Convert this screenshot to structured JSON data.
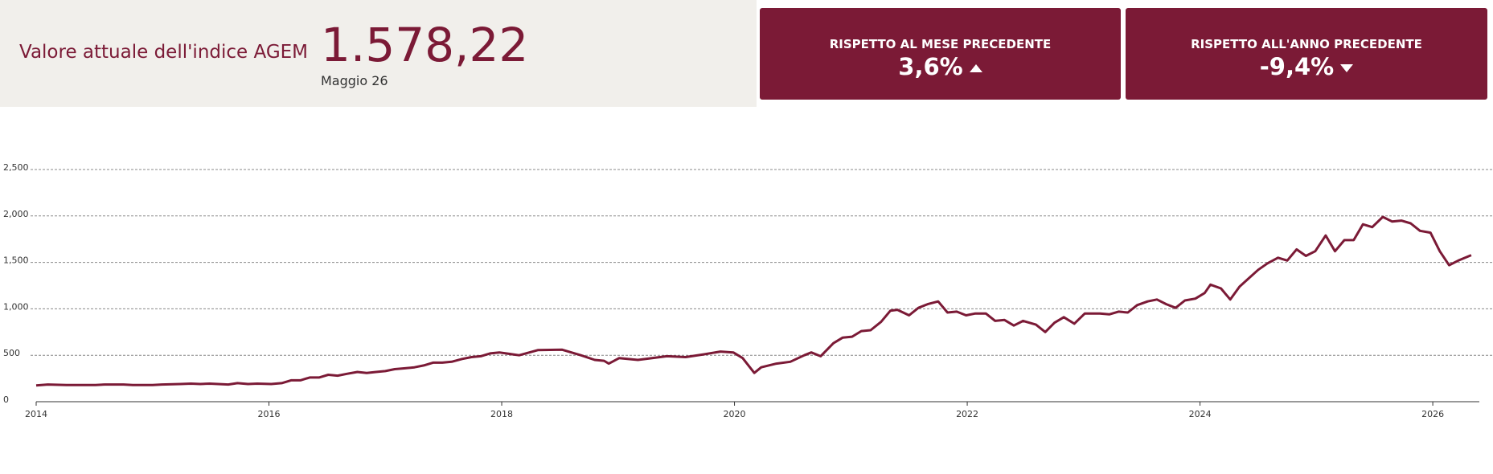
{
  "kpi": {
    "label": "Valore attuale dell'indice AGEM",
    "value": "1.578,22",
    "date": "Maggio 26"
  },
  "cards": [
    {
      "label": "RISPETTO AL MESE PRECEDENTE",
      "value": "3,6%"
    },
    {
      "label": "RISPETTO ALL'ANNO PRECEDENTE",
      "value": "-9,4%"
    }
  ],
  "chart_data": {
    "type": "line",
    "color": "#7b1a36",
    "grid": true,
    "xlim": [
      2014,
      2026.4
    ],
    "xticks": [
      2014,
      2016,
      2018,
      2020,
      2022,
      2024,
      2026
    ],
    "ylim": [
      0,
      2500
    ],
    "yticks": [
      0,
      500,
      {
        "value": 1000,
        "label": "1,000"
      },
      {
        "value": 1500,
        "label": "1,500"
      },
      {
        "value": 2000,
        "label": "2,000"
      },
      {
        "value": 2500,
        "label": "2,500"
      }
    ],
    "x": [
      2014.0,
      2014.1,
      2014.26,
      2014.51,
      2014.59,
      2014.75,
      2014.83,
      2015.0,
      2015.08,
      2015.24,
      2015.33,
      2015.41,
      2015.49,
      2015.65,
      2015.73,
      2015.82,
      2015.9,
      2016.02,
      2016.11,
      2016.19,
      2016.27,
      2016.35,
      2016.43,
      2016.51,
      2016.59,
      2016.67,
      2016.76,
      2016.84,
      2016.92,
      2017.0,
      2017.08,
      2017.17,
      2017.25,
      2017.33,
      2017.41,
      2017.49,
      2017.57,
      2017.66,
      2017.74,
      2017.82,
      2017.9,
      2017.98,
      2018.15,
      2018.31,
      2018.52,
      2018.68,
      2018.8,
      2018.88,
      2018.92,
      2019.01,
      2019.17,
      2019.42,
      2019.58,
      2019.74,
      2019.88,
      2019.99,
      2020.07,
      2020.17,
      2020.23,
      2020.36,
      2020.48,
      2020.6,
      2020.66,
      2020.74,
      2020.85,
      2020.93,
      2021.01,
      2021.09,
      2021.17,
      2021.26,
      2021.34,
      2021.4,
      2021.5,
      2021.58,
      2021.66,
      2021.75,
      2021.83,
      2021.91,
      2021.99,
      2022.07,
      2022.16,
      2022.24,
      2022.32,
      2022.4,
      2022.48,
      2022.59,
      2022.67,
      2022.75,
      2022.83,
      2022.92,
      2023.01,
      2023.14,
      2023.22,
      2023.3,
      2023.38,
      2023.46,
      2023.55,
      2023.63,
      2023.71,
      2023.79,
      2023.87,
      2023.96,
      2024.04,
      2024.09,
      2024.18,
      2024.26,
      2024.34,
      2024.42,
      2024.5,
      2024.58,
      2024.67,
      2024.75,
      2024.83,
      2024.91,
      2024.99,
      2025.08,
      2025.16,
      2025.24,
      2025.32,
      2025.4,
      2025.48,
      2025.57,
      2025.65,
      2025.73,
      2025.81,
      2025.89,
      2025.98,
      2026.06,
      2026.14,
      2026.22,
      2026.33
    ],
    "values": [
      175,
      185,
      180,
      180,
      185,
      185,
      180,
      180,
      185,
      190,
      195,
      190,
      195,
      185,
      200,
      190,
      195,
      190,
      200,
      230,
      230,
      260,
      260,
      290,
      280,
      300,
      320,
      310,
      320,
      330,
      350,
      360,
      370,
      390,
      420,
      420,
      430,
      460,
      480,
      490,
      520,
      530,
      500,
      555,
      560,
      500,
      450,
      440,
      410,
      470,
      450,
      490,
      480,
      510,
      540,
      530,
      470,
      310,
      370,
      410,
      430,
      500,
      530,
      490,
      630,
      690,
      700,
      760,
      770,
      860,
      980,
      990,
      930,
      1010,
      1050,
      1080,
      960,
      970,
      930,
      950,
      950,
      870,
      880,
      820,
      870,
      830,
      750,
      850,
      910,
      840,
      950,
      950,
      940,
      970,
      960,
      1040,
      1080,
      1100,
      1050,
      1010,
      1090,
      1110,
      1170,
      1260,
      1220,
      1100,
      1240,
      1330,
      1420,
      1490,
      1550,
      1520,
      1640,
      1570,
      1620,
      1790,
      1620,
      1740,
      1740,
      1910,
      1880,
      1990,
      1940,
      1950,
      1920,
      1840,
      1820,
      1620,
      1470,
      1520,
      1578.22
    ]
  }
}
